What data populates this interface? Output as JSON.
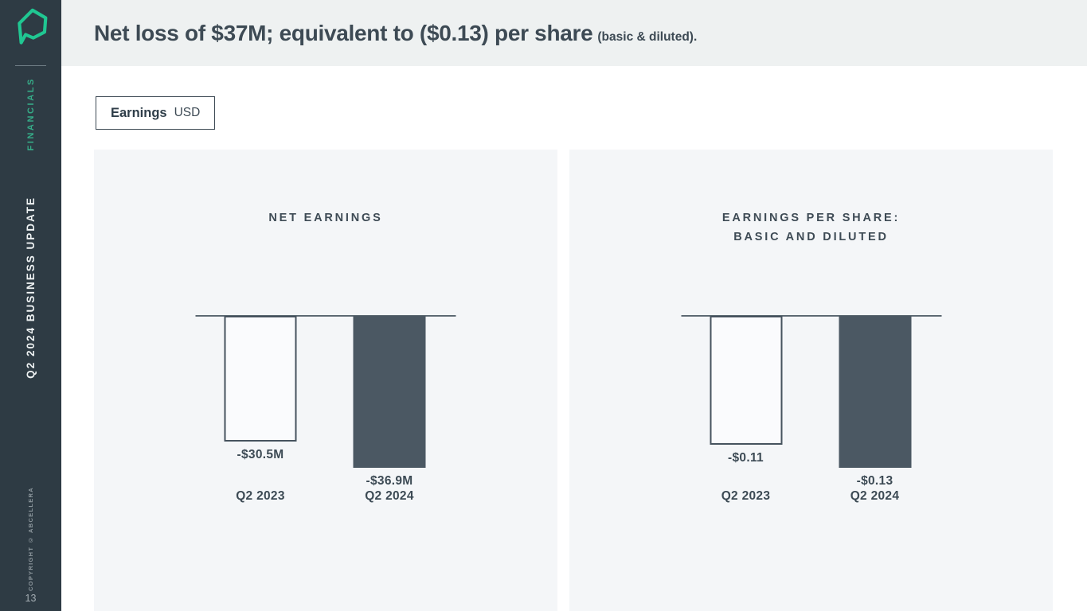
{
  "sidebar": {
    "logo": "abcellera-hexagon-logo",
    "section_label": "FINANCIALS",
    "deck_title": "Q2 2024 BUSINESS UPDATE",
    "copyright": "COPYRIGHT © ABCELLERA",
    "page_number": "13"
  },
  "header": {
    "title_main": "Net loss of $37M; equivalent to ($0.13) per share",
    "title_suffix": "(basic & diluted)."
  },
  "toolbar": {
    "tab_bold": "Earnings",
    "tab_regular": "USD"
  },
  "colors": {
    "sidebar_bg": "#2e3b44",
    "accent_green": "#20c792",
    "financials_green": "#36ac88",
    "header_bg": "#eef1f1",
    "panel_bg": "#f4f6f8",
    "bar_dark": "#4b5863",
    "text_dark": "#3d4a54",
    "baseline": "#5d6a73"
  },
  "chart_data": [
    {
      "type": "bar",
      "title_lines": [
        "NET EARNINGS"
      ],
      "categories": [
        "Q2 2023",
        "Q2 2024"
      ],
      "values": [
        -30.5,
        -36.9
      ],
      "value_labels": [
        "-$30.5M",
        "-$36.9M"
      ],
      "bar_styles": [
        "outline",
        "filled"
      ],
      "baseline_value": 0,
      "unit": "USD",
      "axes_hidden": true,
      "legend": "none"
    },
    {
      "type": "bar",
      "title_lines": [
        "EARNINGS PER SHARE:",
        "BASIC AND DILUTED"
      ],
      "categories": [
        "Q2 2023",
        "Q2 2024"
      ],
      "values": [
        -0.11,
        -0.13
      ],
      "value_labels": [
        "-$0.11",
        "-$0.13"
      ],
      "bar_styles": [
        "outline",
        "filled"
      ],
      "baseline_value": 0,
      "unit": "USD",
      "axes_hidden": true,
      "legend": "none"
    }
  ]
}
